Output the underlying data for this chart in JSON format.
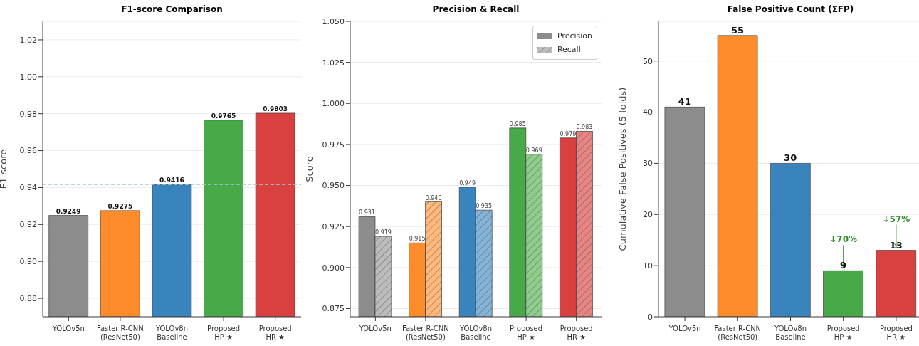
{
  "chart_data": [
    {
      "type": "bar",
      "title": "F1-score Comparison",
      "ylabel": "F1-score",
      "categories": [
        "YOLOv5n",
        "Faster R-CNN\n(ResNet50)",
        "YOLOv8n\nBaseline",
        "Proposed\nHP ★",
        "Proposed\nHR ★"
      ],
      "values": [
        0.9249,
        0.9275,
        0.9416,
        0.9765,
        0.9803
      ],
      "colors": [
        "#8c8c8c",
        "#ff8c2a",
        "#3a84bd",
        "#47a947",
        "#d94040"
      ],
      "ylim": [
        0.87,
        1.03
      ],
      "yticks": [
        0.88,
        {
          "value": 0.9,
          "label": "0.90"
        },
        0.92,
        0.94,
        0.96,
        0.98,
        {
          "value": 1,
          "label": "1.00"
        },
        1.02
      ],
      "ref_lines": [
        {
          "axis": "y",
          "value": 0.9416,
          "color": "#9ecae1",
          "line_style": "dashed"
        }
      ],
      "grid": "y",
      "data_labels": true
    },
    {
      "type": "bar",
      "title": "Precision & Recall",
      "ylabel": "Score",
      "categories": [
        "YOLOv5n",
        "Faster R-CNN\n(ResNet50)",
        "YOLOv8n\nBaseline",
        "Proposed\nHP ★",
        "Proposed\nHR ★"
      ],
      "series": [
        {
          "name": "Precision",
          "color": "#8c8c8c",
          "colors": [
            "#8c8c8c",
            "#ff8c2a",
            "#3a84bd",
            "#47a947",
            "#d94040"
          ],
          "values": [
            0.931,
            0.915,
            0.949,
            0.985,
            0.979
          ],
          "value_labels": [
            "0.931",
            "0.915",
            "0.949",
            "0.985",
            "0.979"
          ]
        },
        {
          "name": "Recall",
          "color": "#bcbcbc",
          "colors": [
            "#bcbcbc",
            "#ffb97c",
            "#86b4d9",
            "#8fcd8c",
            "#e78585"
          ],
          "values": [
            0.919,
            0.94,
            0.935,
            0.969,
            0.983
          ],
          "value_labels": [
            "0.919",
            "0.940",
            "0.935",
            "0.969",
            "0.983"
          ]
        }
      ],
      "ylim": [
        0.87,
        1.05
      ],
      "yticks": [
        0.875,
        {
          "value": 0.9,
          "label": "0.900"
        },
        0.925,
        {
          "value": 0.95,
          "label": "0.950"
        },
        0.975,
        {
          "value": 1,
          "label": "1.000"
        },
        1.025,
        {
          "value": 1.05,
          "label": "1.050"
        }
      ],
      "grid": "y",
      "legend": "top right"
    },
    {
      "type": "bar",
      "title": "False Positive Count (ΣFP)",
      "ylabel": "Cumulative False Positives (5 folds)",
      "categories": [
        "YOLOv5n",
        "Faster R-CNN\n(ResNet50)",
        "YOLOv8n\nBaseline",
        "Proposed\nHP ★",
        "Proposed\nHR ★"
      ],
      "values": [
        41,
        55,
        30,
        9,
        13
      ],
      "colors": [
        "#8c8c8c",
        "#ff8c2a",
        "#3a84bd",
        "#47a947",
        "#d94040"
      ],
      "ylim": [
        0,
        57.75
      ],
      "yticks": [
        0,
        10,
        20,
        30,
        40,
        50
      ],
      "annotations": [
        {
          "text": "↓70%",
          "x": "Proposed\nHP ★",
          "y": 9
        },
        {
          "text": "↓57%",
          "x": "Proposed\nHR ★",
          "y": 13
        }
      ],
      "grid": "y",
      "data_labels": true
    }
  ]
}
